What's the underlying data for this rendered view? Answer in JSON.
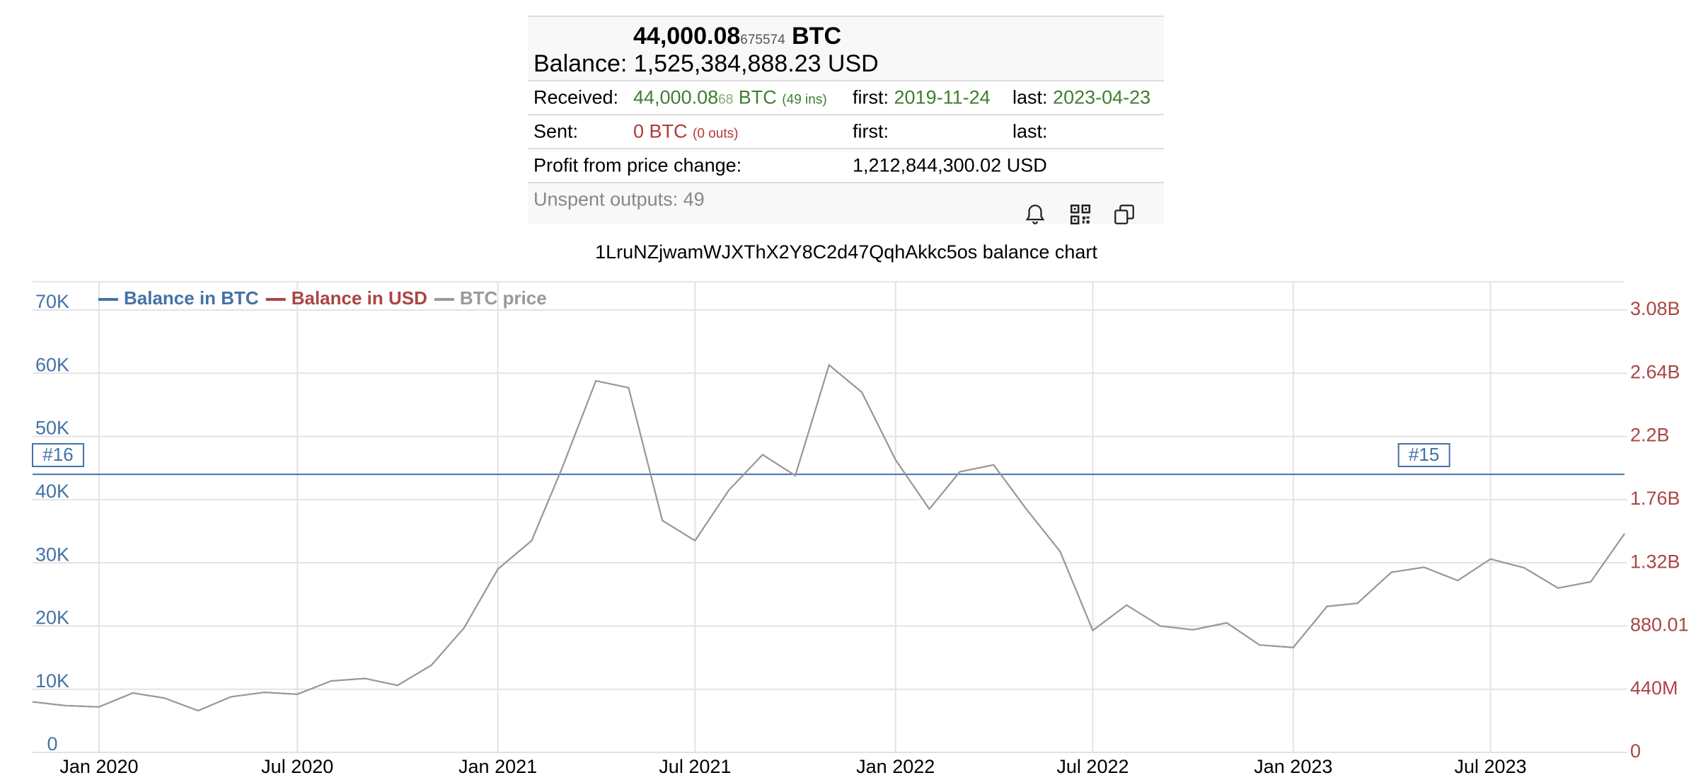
{
  "summary": {
    "amount": "44,000.08",
    "amount_small": "675574",
    "amount_unit": "BTC",
    "balance_label": "Balance:",
    "balance": "1,525,384,888.23 USD"
  },
  "rows": [
    {
      "label": "Received:",
      "amount": "44,000.08",
      "amount_small": "68",
      "unit": "BTC",
      "count": "(49 ins)",
      "first_label": "first:",
      "first": "2019-11-24",
      "last_label": "last:",
      "last": "2023-04-23"
    },
    {
      "label": "Sent:",
      "amount": "0 BTC",
      "count": "(0 outs)",
      "first_label": "first:",
      "last_label": "last:"
    },
    {
      "label": "Profit from price change:",
      "value": "1,212,844,300.02 USD"
    }
  ],
  "unspent": "Unspent outputs: 49",
  "chart_data": {
    "type": "line",
    "title": "1LruNZjwamWJXThX2Y8C2d47QqhAkkc5os balance chart",
    "x": [
      "2019-11",
      "2019-12",
      "2020-01",
      "2020-02",
      "2020-03",
      "2020-04",
      "2020-05",
      "2020-06",
      "2020-07",
      "2020-08",
      "2020-09",
      "2020-10",
      "2020-11",
      "2020-12",
      "2021-01",
      "2021-02",
      "2021-03",
      "2021-04",
      "2021-05",
      "2021-06",
      "2021-07",
      "2021-08",
      "2021-09",
      "2021-10",
      "2021-11",
      "2021-12",
      "2022-01",
      "2022-02",
      "2022-03",
      "2022-04",
      "2022-05",
      "2022-06",
      "2022-07",
      "2022-08",
      "2022-09",
      "2022-10",
      "2022-11",
      "2022-12",
      "2023-01",
      "2023-02",
      "2023-03",
      "2023-04",
      "2023-05",
      "2023-06",
      "2023-07",
      "2023-08",
      "2023-09",
      "2023-10",
      "2023-11"
    ],
    "series": [
      {
        "name": "Balance in USD",
        "color": "#aa4643",
        "axis": "y2",
        "values": [
          352000000,
          325600000,
          316800000,
          413600000,
          378400000,
          290400000,
          387200000,
          418000000,
          404800000,
          497200000,
          514800000,
          466400000,
          607200000,
          866800000,
          1276000000,
          1474000000,
          1980000000,
          2587200000,
          2538800000,
          1614800000,
          1474000000,
          1826000000,
          2072400000,
          1927200000,
          2697200000,
          2508000000,
          2037200000,
          1694000000,
          1953600000,
          2002000000,
          1694000000,
          1399200000,
          849200000,
          1025200000,
          880000000,
          853600000,
          902000000,
          748000000,
          730400000,
          1016400000,
          1038400000,
          1254000000,
          1289200000,
          1196800000,
          1346400000,
          1284800000,
          1144000000,
          1188000000,
          1522400000
        ]
      },
      {
        "name": "Balance in BTC",
        "color": "#4572a7",
        "values": [
          44000.08,
          44000.08,
          44000.08,
          44000.08,
          44000.08,
          44000.08,
          44000.08,
          44000.08,
          44000.08,
          44000.08,
          44000.08,
          44000.08,
          44000.08,
          44000.08,
          44000.08,
          44000.08,
          44000.08,
          44000.08,
          44000.08,
          44000.08,
          44000.08,
          44000.08,
          44000.08,
          44000.08,
          44000.08,
          44000.08,
          44000.08,
          44000.08,
          44000.08,
          44000.08,
          44000.08,
          44000.08,
          44000.08,
          44000.08,
          44000.08,
          44000.08,
          44000.08,
          44000.08,
          44000.08,
          44000.08,
          44000.08,
          44000.08,
          44000.08,
          44000.08,
          44000.08,
          44000.08,
          44000.08,
          44000.08,
          44000.08
        ]
      },
      {
        "name": "BTC price",
        "color": "#999999",
        "values": [
          8000,
          7400,
          7200,
          9400,
          8600,
          6600,
          8800,
          9500,
          9200,
          11300,
          11700,
          10600,
          13800,
          19700,
          29000,
          33500,
          45000,
          58800,
          57700,
          36700,
          33500,
          41500,
          47100,
          43800,
          61300,
          57000,
          46300,
          38500,
          44400,
          45500,
          38500,
          31800,
          19300,
          23300,
          20000,
          19400,
          20500,
          17000,
          16600,
          23100,
          23600,
          28500,
          29300,
          27200,
          30600,
          29200,
          26000,
          27000,
          34600
        ]
      }
    ],
    "legend": "top-left",
    "xlim": [
      "2019-11",
      "2023-11"
    ],
    "xticks": [
      {
        "value": "2020-01",
        "label": "Jan 2020"
      },
      {
        "value": "2020-07",
        "label": "Jul 2020"
      },
      {
        "value": "2021-01",
        "label": "Jan 2021"
      },
      {
        "value": "2021-07",
        "label": "Jul 2021"
      },
      {
        "value": "2022-01",
        "label": "Jan 2022"
      },
      {
        "value": "2022-07",
        "label": "Jul 2022"
      },
      {
        "value": "2023-01",
        "label": "Jan 2023"
      },
      {
        "value": "2023-07",
        "label": "Jul 2023"
      }
    ],
    "ylim": [
      0,
      74480
    ],
    "yticks": [
      0,
      {
        "value": 10000,
        "label": "10K"
      },
      {
        "value": 20000,
        "label": "20K"
      },
      {
        "value": 30000,
        "label": "30K"
      },
      {
        "value": 40000,
        "label": "40K"
      },
      {
        "value": 50000,
        "label": "50K"
      },
      {
        "value": 60000,
        "label": "60K"
      },
      {
        "value": 70000,
        "label": "70K"
      }
    ],
    "y2lim": [
      0,
      3277120000
    ],
    "y2ticks": [
      0,
      {
        "value": 440000000,
        "label": "440M"
      },
      {
        "value": 880010000,
        "label": "880.01"
      },
      {
        "value": 1320000000,
        "label": "1.32B"
      },
      {
        "value": 1760000000,
        "label": "1.76B"
      },
      {
        "value": 2200000000,
        "label": "2.2B"
      },
      {
        "value": 2640000000,
        "label": "2.64B"
      },
      {
        "value": 3080000000,
        "label": "3.08B"
      }
    ],
    "grid": true,
    "annotations": [
      {
        "text": "#16",
        "x": "2019-11"
      },
      {
        "text": "#15",
        "x": "2023-05"
      }
    ]
  }
}
